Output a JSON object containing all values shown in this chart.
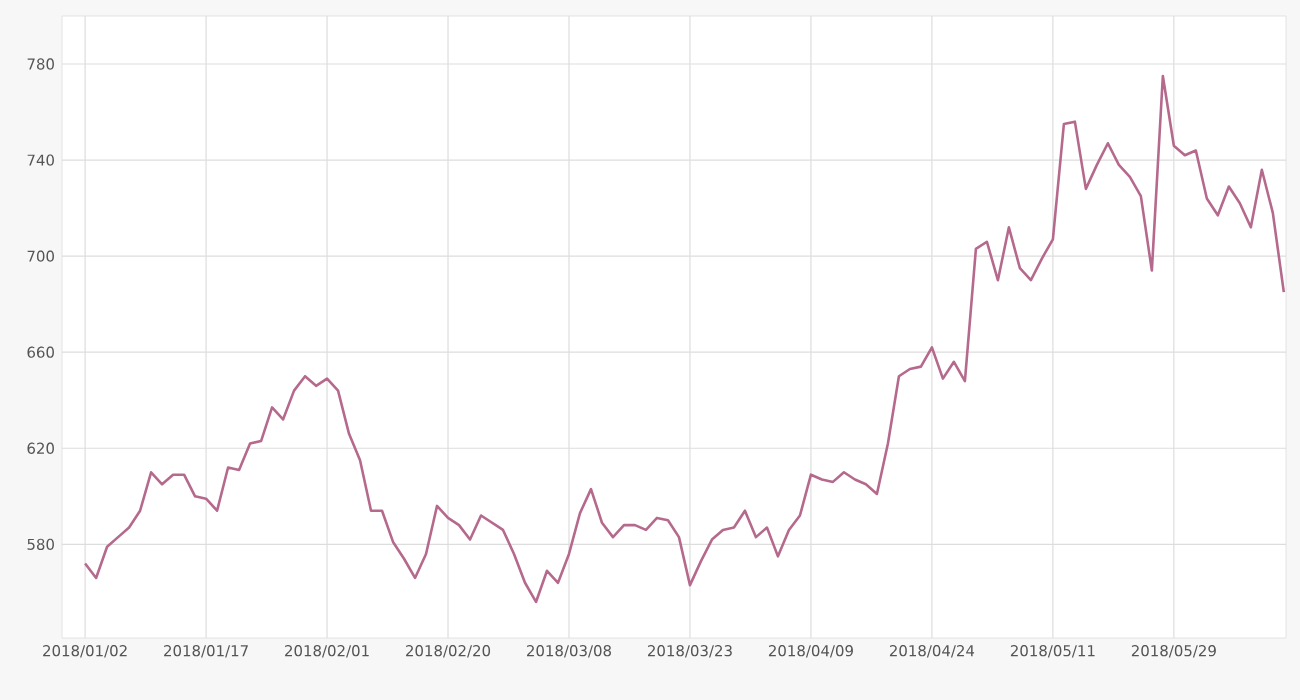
{
  "chart_data": {
    "type": "line",
    "categories": [
      "2018/01/02",
      null,
      null,
      null,
      null,
      null,
      null,
      null,
      null,
      null,
      null,
      "2018/01/17",
      null,
      null,
      null,
      null,
      null,
      null,
      null,
      null,
      null,
      null,
      "2018/02/01",
      null,
      null,
      null,
      null,
      null,
      null,
      null,
      null,
      null,
      null,
      "2018/02/20",
      null,
      null,
      null,
      null,
      null,
      null,
      null,
      null,
      null,
      null,
      "2018/03/08",
      null,
      null,
      null,
      null,
      null,
      null,
      null,
      null,
      null,
      null,
      "2018/03/23",
      null,
      null,
      null,
      null,
      null,
      null,
      null,
      null,
      null,
      null,
      "2018/04/09",
      null,
      null,
      null,
      null,
      null,
      null,
      null,
      null,
      null,
      null,
      "2018/04/24",
      null,
      null,
      null,
      null,
      null,
      null,
      null,
      null,
      null,
      null,
      "2018/05/11",
      null,
      null,
      null,
      null,
      null,
      null,
      null,
      null,
      null,
      null,
      "2018/05/29",
      null,
      null,
      null,
      null,
      null,
      null,
      null,
      null,
      null,
      null
    ],
    "series": [
      {
        "color": "#b5698c",
        "values": [
          572,
          566,
          579,
          583,
          587,
          594,
          610,
          605,
          609,
          609,
          600,
          599,
          594,
          612,
          611,
          622,
          623,
          637,
          632,
          644,
          650,
          646,
          649,
          644,
          626,
          615,
          594,
          594,
          581,
          574,
          566,
          576,
          596,
          591,
          588,
          582,
          592,
          589,
          586,
          576,
          564,
          556,
          569,
          564,
          576,
          593,
          603,
          589,
          583,
          588,
          588,
          586,
          591,
          590,
          583,
          563,
          573,
          582,
          586,
          587,
          594,
          583,
          587,
          575,
          586,
          592,
          609,
          607,
          606,
          610,
          607,
          605,
          601,
          622,
          650,
          653,
          654,
          662,
          649,
          656,
          648,
          703,
          706,
          690,
          712,
          695,
          690,
          699,
          707,
          755,
          756,
          728,
          738,
          747,
          738,
          733,
          725,
          694,
          775,
          746,
          742,
          744,
          724,
          717,
          729,
          722,
          712,
          736,
          718,
          685
        ]
      }
    ],
    "ylim": [
      541,
      800
    ],
    "yticks": [
      580,
      620,
      660,
      700,
      740,
      780
    ],
    "grid": true,
    "marker": "none",
    "line_style": "solid"
  }
}
